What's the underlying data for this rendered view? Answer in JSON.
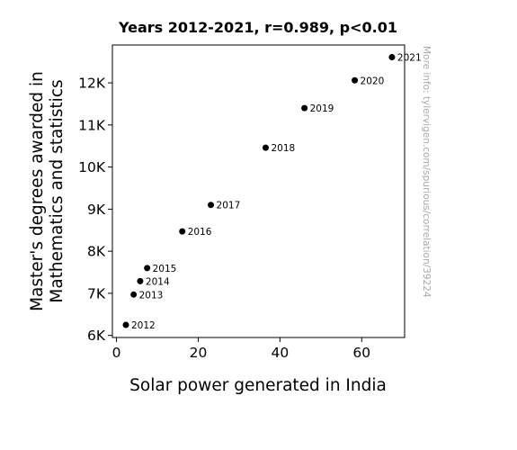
{
  "chart_data": {
    "type": "scatter",
    "title": "Years 2012-2021, r=0.989, p<0.01",
    "xlabel": "Solar power generated in India",
    "ylabel_lines": [
      "Master's degrees awarded in",
      "Mathematics and statistics"
    ],
    "xlim": [
      -1,
      70.5
    ],
    "ylim": [
      5950,
      12900
    ],
    "x_ticks": [
      {
        "value": 0,
        "label": "0"
      },
      {
        "value": 20,
        "label": "20"
      },
      {
        "value": 40,
        "label": "40"
      },
      {
        "value": 60,
        "label": "60"
      }
    ],
    "y_ticks": [
      {
        "value": 6000,
        "label": "6K"
      },
      {
        "value": 7000,
        "label": "7K"
      },
      {
        "value": 8000,
        "label": "8K"
      },
      {
        "value": 9000,
        "label": "9K"
      },
      {
        "value": 10000,
        "label": "10K"
      },
      {
        "value": 11000,
        "label": "11K"
      },
      {
        "value": 12000,
        "label": "12K"
      }
    ],
    "points": [
      {
        "x": 2.3,
        "y": 6250,
        "label": "2012"
      },
      {
        "x": 4.2,
        "y": 6970,
        "label": "2013"
      },
      {
        "x": 5.8,
        "y": 7290,
        "label": "2014"
      },
      {
        "x": 7.5,
        "y": 7600,
        "label": "2015"
      },
      {
        "x": 16.1,
        "y": 8470,
        "label": "2016"
      },
      {
        "x": 23.1,
        "y": 9100,
        "label": "2017"
      },
      {
        "x": 36.5,
        "y": 10460,
        "label": "2018"
      },
      {
        "x": 46.0,
        "y": 11400,
        "label": "2019"
      },
      {
        "x": 58.3,
        "y": 12060,
        "label": "2020"
      },
      {
        "x": 67.4,
        "y": 12610,
        "label": "2021"
      }
    ],
    "grid": false,
    "marker_color": "#000000",
    "watermark": "More info: tylervigen.com/spurious/correlation/39224"
  }
}
